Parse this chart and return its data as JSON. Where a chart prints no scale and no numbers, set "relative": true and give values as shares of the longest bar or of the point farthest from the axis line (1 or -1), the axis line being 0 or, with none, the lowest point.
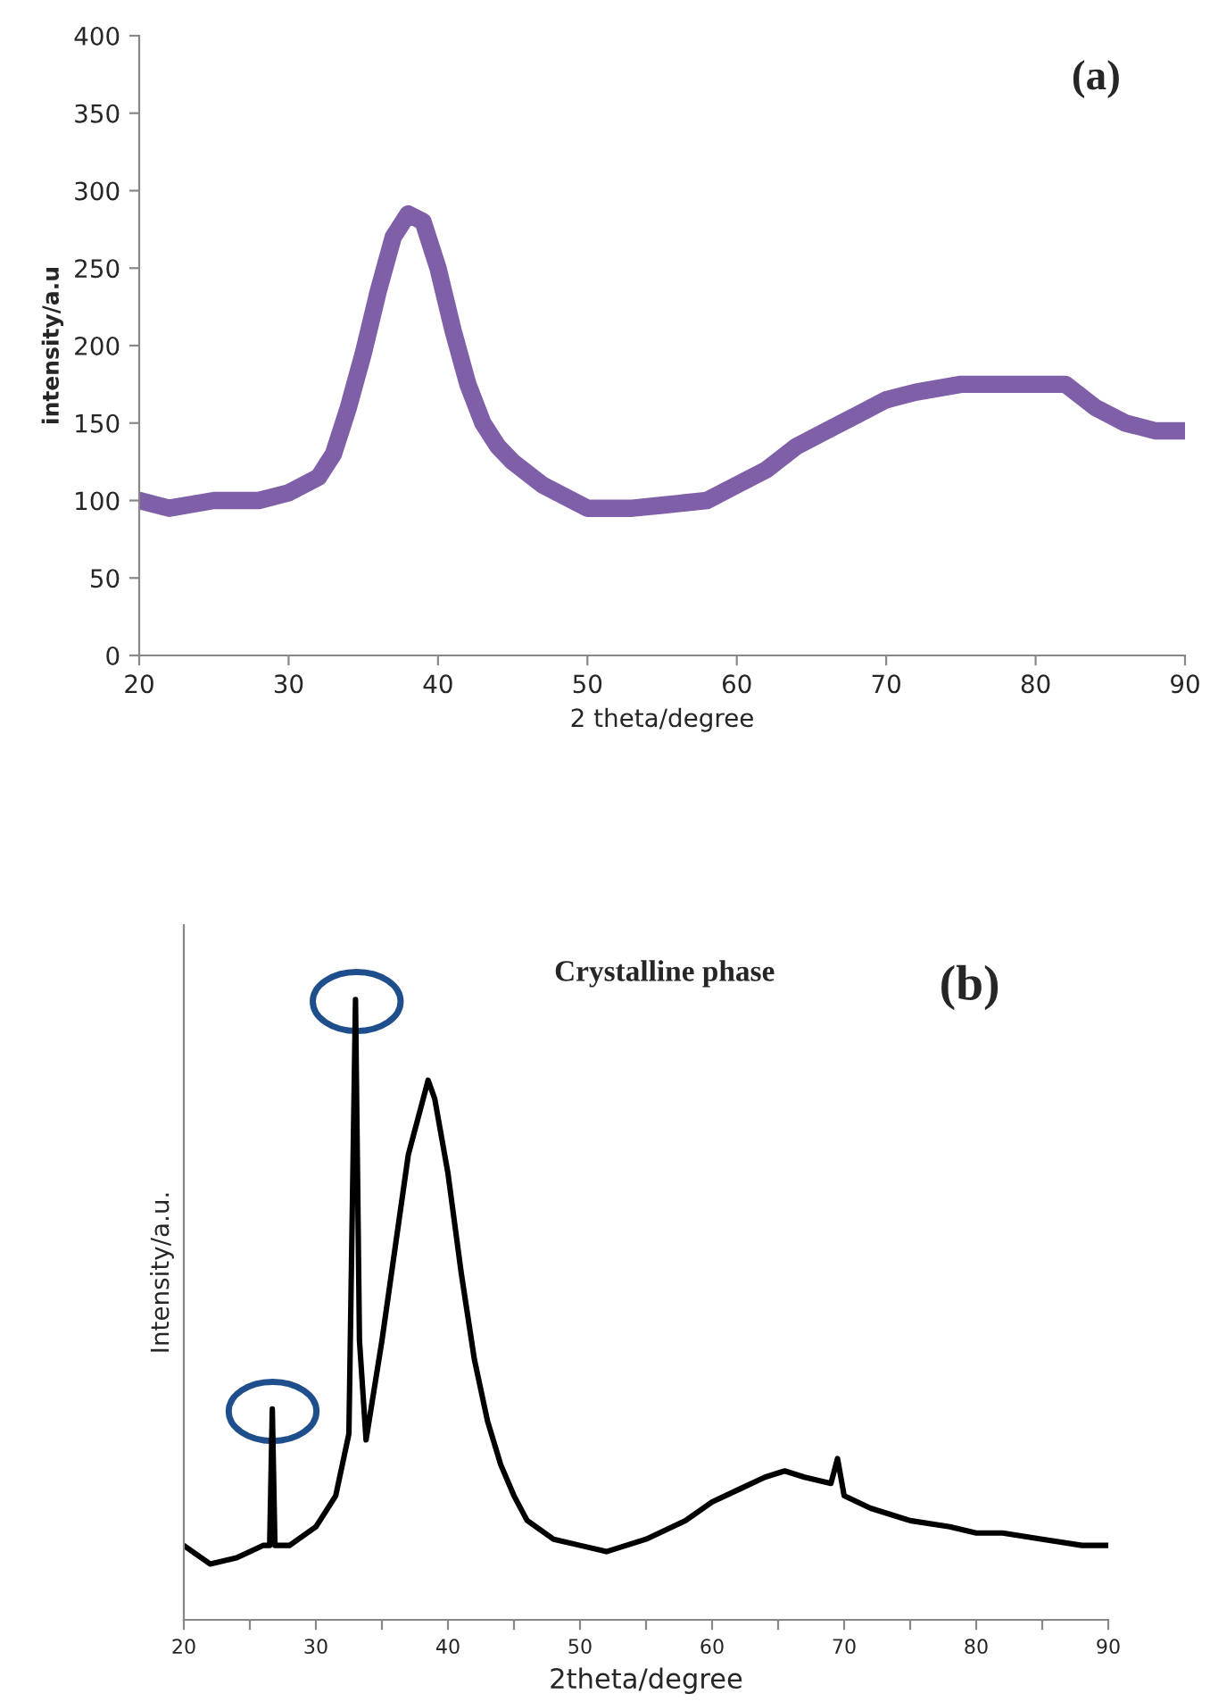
{
  "chart_data": [
    {
      "type": "line",
      "xlabel": "2 theta/degree",
      "ylabel": "intensity/a.u",
      "annotations": [
        "(a)"
      ],
      "x": [
        20,
        22,
        25,
        28,
        30,
        32,
        33,
        34,
        35,
        36,
        37,
        38,
        39,
        40,
        41,
        42,
        43,
        44,
        45,
        47,
        50,
        53,
        55,
        58,
        60,
        62,
        64,
        66,
        68,
        70,
        72,
        75,
        78,
        80,
        82,
        84,
        86,
        88,
        90
      ],
      "series": [
        {
          "color": "#7f5fa8",
          "values": [
            100,
            95,
            100,
            100,
            105,
            115,
            130,
            160,
            195,
            235,
            270,
            285,
            280,
            250,
            210,
            175,
            150,
            135,
            125,
            110,
            95,
            95,
            97,
            100,
            110,
            120,
            135,
            145,
            155,
            165,
            170,
            175,
            175,
            175,
            175,
            160,
            150,
            145,
            145
          ]
        }
      ],
      "xlim": [
        20,
        90
      ],
      "ylim": [
        0,
        400
      ],
      "xticks": [
        20,
        30,
        40,
        50,
        60,
        70,
        80,
        90
      ],
      "yticks": [
        0,
        50,
        100,
        150,
        200,
        250,
        300,
        350,
        400
      ],
      "grid": false,
      "legend": false
    },
    {
      "type": "line",
      "relative": true,
      "xlabel": "2theta/degree",
      "ylabel": "Intensity/a.u.",
      "annotations": [
        "Crystalline phase",
        "(b)"
      ],
      "x": [
        20,
        22,
        24,
        26,
        26.5,
        26.7,
        26.9,
        28,
        30,
        31.5,
        32.5,
        33.0,
        33.3,
        33.8,
        35,
        36,
        37,
        38,
        38.5,
        39,
        40,
        41,
        42,
        43,
        44,
        45,
        46,
        48,
        50,
        52,
        55,
        58,
        60,
        62,
        64,
        65.5,
        67,
        69,
        69.5,
        70,
        72,
        75,
        78,
        80,
        82,
        85,
        88,
        90
      ],
      "series": [
        {
          "color": "#000000",
          "values": [
            0.12,
            0.09,
            0.1,
            0.12,
            0.12,
            0.34,
            0.12,
            0.12,
            0.15,
            0.2,
            0.3,
            1.0,
            0.45,
            0.29,
            0.45,
            0.6,
            0.75,
            0.83,
            0.87,
            0.84,
            0.72,
            0.56,
            0.42,
            0.32,
            0.25,
            0.2,
            0.16,
            0.13,
            0.12,
            0.11,
            0.13,
            0.16,
            0.19,
            0.21,
            0.23,
            0.24,
            0.23,
            0.22,
            0.26,
            0.2,
            0.18,
            0.16,
            0.15,
            0.14,
            0.14,
            0.13,
            0.12,
            0.12
          ]
        }
      ],
      "xlim": [
        20,
        90
      ],
      "xticks": [
        20,
        {
          "value": 25,
          "label": null
        },
        30,
        {
          "value": 35,
          "label": null
        },
        40,
        {
          "value": 45,
          "label": null
        },
        50,
        {
          "value": 55,
          "label": null
        },
        60,
        {
          "value": 65,
          "label": null
        },
        70,
        {
          "value": 75,
          "label": null
        },
        80,
        {
          "value": 85,
          "label": null
        },
        90
      ],
      "grid": false,
      "legend": false
    }
  ]
}
